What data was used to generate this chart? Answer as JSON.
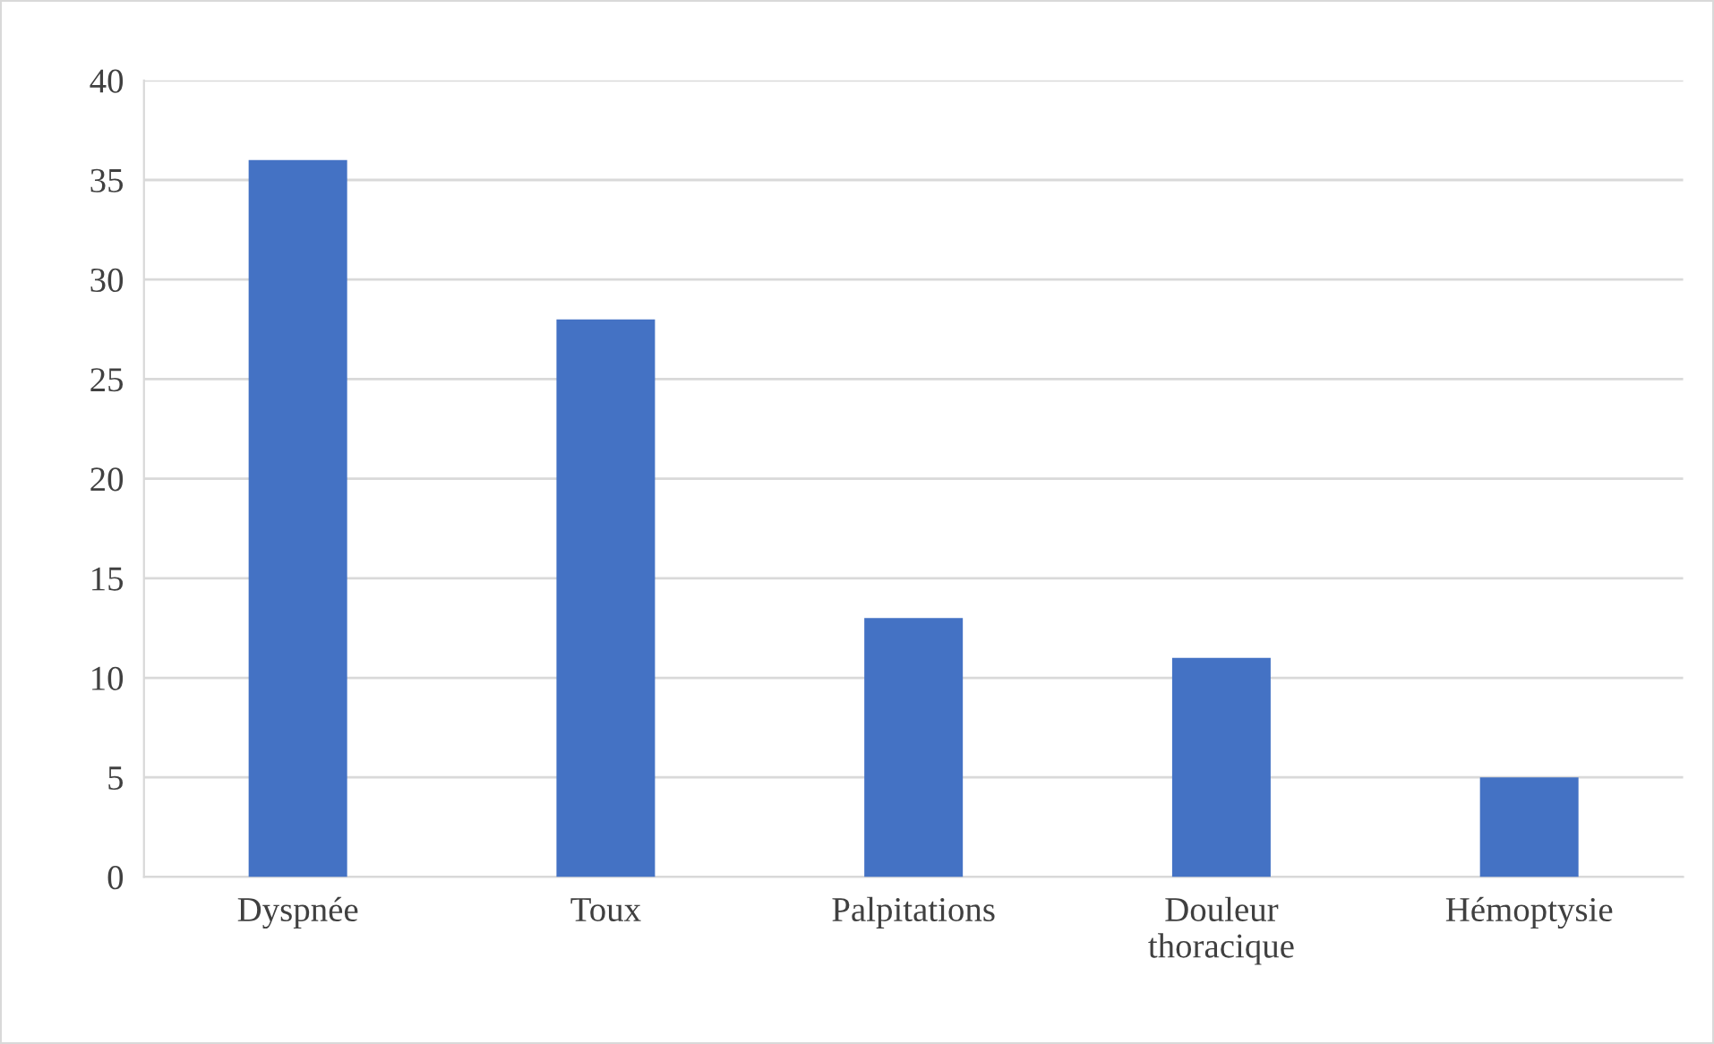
{
  "chart_data": {
    "type": "bar",
    "categories": [
      "Dyspnée",
      "Toux",
      "Palpitations",
      "Douleur thoracique",
      "Hémoptysie"
    ],
    "values": [
      36,
      28,
      13,
      11,
      5
    ],
    "color": "#4472c4",
    "ylim": [
      0,
      40
    ],
    "yticks": [
      0,
      5,
      10,
      15,
      20,
      25,
      30,
      35,
      40
    ],
    "grid": "y",
    "legend": false
  }
}
